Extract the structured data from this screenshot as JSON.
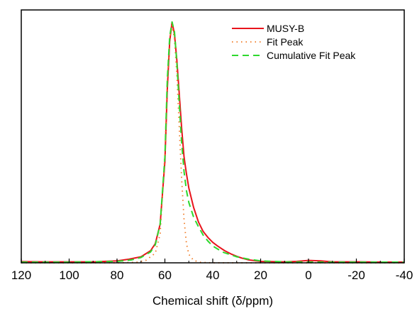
{
  "chart_data": {
    "type": "line",
    "title": "",
    "xlabel": "Chemical shift (δ/ppm)",
    "ylabel": "",
    "xlim": [
      120,
      -40
    ],
    "ylim": [
      0,
      1.05
    ],
    "x_reversed": true,
    "x_ticks": [
      120,
      100,
      80,
      60,
      40,
      20,
      0,
      -20,
      -40
    ],
    "y_ticks_shown": false,
    "grid": false,
    "legend_position": "top-right",
    "series": [
      {
        "name": "MUSY-B",
        "style": "solid",
        "color": "#e8141c",
        "x": [
          120,
          110,
          100,
          90,
          80,
          75,
          70,
          66,
          64,
          62,
          60,
          59,
          58,
          57,
          56,
          55,
          54,
          53,
          52,
          51,
          50,
          48,
          46,
          44,
          42,
          40,
          38,
          35,
          32,
          30,
          28,
          25,
          20,
          10,
          5,
          0,
          -5,
          -10,
          -20,
          -30,
          -40
        ],
        "y": [
          0.005,
          0.004,
          0.004,
          0.004,
          0.008,
          0.015,
          0.025,
          0.05,
          0.08,
          0.16,
          0.42,
          0.72,
          0.92,
          1.0,
          0.95,
          0.84,
          0.7,
          0.56,
          0.44,
          0.37,
          0.31,
          0.23,
          0.17,
          0.13,
          0.105,
          0.085,
          0.07,
          0.05,
          0.035,
          0.027,
          0.02,
          0.012,
          0.006,
          0.004,
          0.006,
          0.01,
          0.008,
          0.004,
          0.004,
          0.003,
          0.003
        ]
      },
      {
        "name": "Fit Peak",
        "style": "dotted",
        "color": "#f07820",
        "x": [
          120,
          80,
          72,
          68,
          64,
          62,
          60,
          59,
          58,
          57,
          56,
          55,
          54,
          53,
          52,
          51,
          50,
          48,
          45,
          40,
          20,
          -40
        ],
        "y": [
          0,
          0,
          0.002,
          0.01,
          0.04,
          0.12,
          0.45,
          0.75,
          0.93,
          0.985,
          0.93,
          0.78,
          0.56,
          0.35,
          0.18,
          0.08,
          0.035,
          0.01,
          0.002,
          0,
          0,
          0
        ]
      },
      {
        "name": "Cumulative Fit Peak",
        "style": "dashed",
        "color": "#2ed82e",
        "x": [
          120,
          100,
          80,
          74,
          70,
          66,
          64,
          62,
          60,
          59,
          58,
          57,
          56,
          55,
          54,
          53,
          52,
          51,
          50,
          48,
          46,
          44,
          42,
          40,
          36,
          30,
          25,
          20,
          10,
          0,
          -20,
          -40
        ],
        "y": [
          0.003,
          0.003,
          0.006,
          0.012,
          0.022,
          0.045,
          0.075,
          0.16,
          0.44,
          0.76,
          0.94,
          1.0,
          0.96,
          0.83,
          0.66,
          0.5,
          0.38,
          0.3,
          0.25,
          0.19,
          0.15,
          0.115,
          0.09,
          0.07,
          0.045,
          0.025,
          0.015,
          0.008,
          0.004,
          0.003,
          0.003,
          0.003
        ]
      }
    ]
  }
}
